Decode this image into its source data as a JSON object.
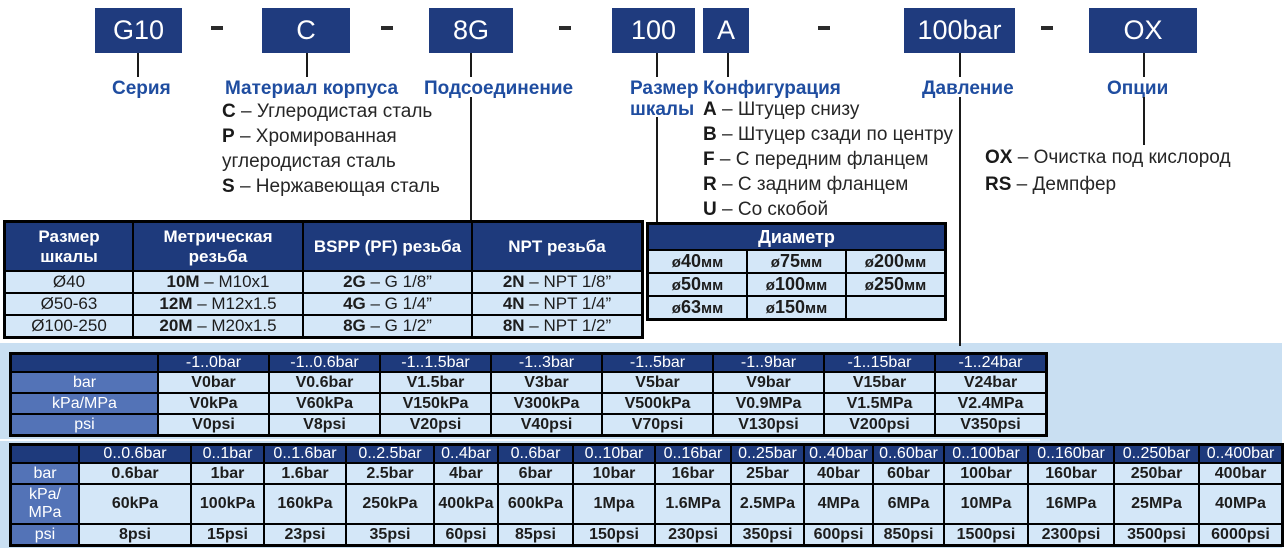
{
  "code_builder": {
    "separator": "-",
    "segments": [
      {
        "code": "G10",
        "label": "Серия"
      },
      {
        "code": "C",
        "label": "Материал корпуса"
      },
      {
        "code": "8G",
        "label": "Подсоединение"
      },
      {
        "code": "100",
        "label": "Размер шкалы"
      },
      {
        "code": "A",
        "label": "Конфигурация"
      },
      {
        "code": "100bar",
        "label": "Давление"
      },
      {
        "code": "OX",
        "label": "Опции"
      }
    ],
    "legends": {
      "material": [
        {
          "key": "C",
          "text": "– Углеродистая сталь"
        },
        {
          "key": "P",
          "text": "– Хромированная"
        },
        {
          "key": "",
          "text": "углеродистая сталь"
        },
        {
          "key": "S",
          "text": "– Нержавеющая сталь"
        }
      ],
      "configuration": [
        {
          "key": "A",
          "text": "– Штуцер снизу"
        },
        {
          "key": "B",
          "text": "– Штуцер сзади по центру"
        },
        {
          "key": "F",
          "text": "– С передним фланцем"
        },
        {
          "key": "R",
          "text": "– С задним фланцем"
        },
        {
          "key": "U",
          "text": "– Со скобой"
        }
      ],
      "options": [
        {
          "key": "OX",
          "text": "– Очистка под кислород"
        },
        {
          "key": "RS",
          "text": "– Демпфер"
        }
      ]
    }
  },
  "thread_table": {
    "headers": [
      "Размер\nшкалы",
      "Метрическая\nрезьба",
      "BSPP (PF) резьба",
      "NPT резьба"
    ],
    "rows": [
      [
        {
          "b": "",
          "t": "Ø40"
        },
        {
          "b": "10M",
          "t": " – M10x1"
        },
        {
          "b": "2G",
          "t": " – G 1/8”"
        },
        {
          "b": "2N",
          "t": " – NPT 1/8”"
        }
      ],
      [
        {
          "b": "",
          "t": "Ø50-63"
        },
        {
          "b": "12M",
          "t": " – M12x1.5"
        },
        {
          "b": "4G",
          "t": " – G 1/4”"
        },
        {
          "b": "4N",
          "t": " – NPT 1/4”"
        }
      ],
      [
        {
          "b": "",
          "t": "Ø100-250"
        },
        {
          "b": "20M",
          "t": " – M20x1.5"
        },
        {
          "b": "8G",
          "t": " – G 1/2”"
        },
        {
          "b": "8N",
          "t": " – NPT 1/2”"
        }
      ]
    ]
  },
  "diameter_table": {
    "title": "Диаметр",
    "cells": [
      [
        {
          "pre": "ø",
          "num": "40",
          "unit": "мм"
        },
        {
          "pre": "ø",
          "num": "75",
          "unit": "мм"
        },
        {
          "pre": "ø",
          "num": "200",
          "unit": "мм"
        }
      ],
      [
        {
          "pre": "ø",
          "num": "50",
          "unit": "мм"
        },
        {
          "pre": "ø",
          "num": "100",
          "unit": "мм"
        },
        {
          "pre": "ø",
          "num": "250",
          "unit": "мм"
        }
      ],
      [
        {
          "pre": "ø",
          "num": "63",
          "unit": "мм"
        },
        {
          "pre": "ø",
          "num": "150",
          "unit": "мм"
        },
        null
      ]
    ]
  },
  "vacuum_table": {
    "col_headers": [
      "-1..0bar",
      "-1..0.6bar",
      "-1..1.5bar",
      "-1..3bar",
      "-1..5bar",
      "-1..9bar",
      "-1..15bar",
      "-1..24bar"
    ],
    "rows": [
      {
        "label": "bar",
        "values": [
          "V0bar",
          "V0.6bar",
          "V1.5bar",
          "V3bar",
          "V5bar",
          "V9bar",
          "V15bar",
          "V24bar"
        ]
      },
      {
        "label": "kPa/MPa",
        "values": [
          "V0kPa",
          "V60kPa",
          "V150kPa",
          "V300kPa",
          "V500kPa",
          "V0.9MPa",
          "V1.5MPa",
          "V2.4MPa"
        ]
      },
      {
        "label": "psi",
        "values": [
          "V0psi",
          "V8psi",
          "V20psi",
          "V40psi",
          "V70psi",
          "V130psi",
          "V200psi",
          "V350psi"
        ]
      }
    ]
  },
  "pressure_table": {
    "col_headers": [
      "0..0.6bar",
      "0..1bar",
      "0..1.6bar",
      "0..2.5bar",
      "0..4bar",
      "0..6bar",
      "0..10bar",
      "0..16bar",
      "0..25bar",
      "0..40bar",
      "0..60bar",
      "0..100bar",
      "0..160bar",
      "0..250bar",
      "0..400bar"
    ],
    "rows": [
      {
        "label": "bar",
        "values": [
          "0.6bar",
          "1bar",
          "1.6bar",
          "2.5bar",
          "4bar",
          "6bar",
          "10bar",
          "16bar",
          "25bar",
          "40bar",
          "60bar",
          "100bar",
          "160bar",
          "250bar",
          "400bar"
        ]
      },
      {
        "label": "kPa/\nMPa",
        "values": [
          "60kPa",
          "100kPa",
          "160kPa",
          "250kPa",
          "400kPa",
          "600kPa",
          "1Mpa",
          "1.6MPa",
          "2.5MPa",
          "4MPa",
          "6MPa",
          "10MPa",
          "16MPa",
          "25MPa",
          "40MPa"
        ]
      },
      {
        "label": "psi",
        "values": [
          "8psi",
          "15psi",
          "23psi",
          "35psi",
          "60psi",
          "85psi",
          "150psi",
          "230psi",
          "350psi",
          "600psi",
          "850psi",
          "1500psi",
          "2300psi",
          "3500psi",
          "6000psi"
        ]
      }
    ]
  }
}
